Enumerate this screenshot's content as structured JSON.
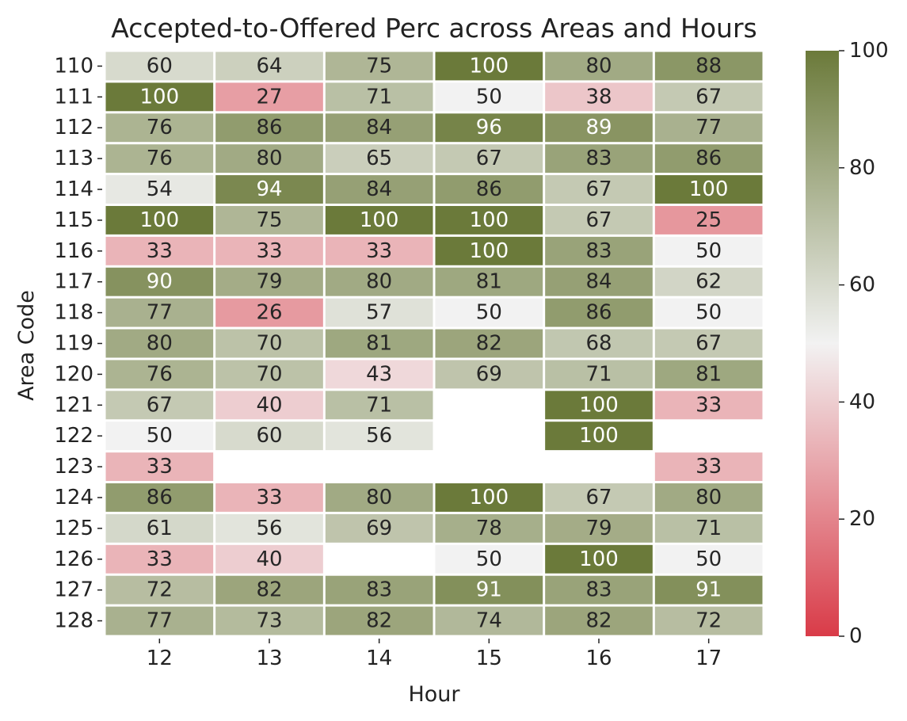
{
  "chart_data": {
    "type": "heatmap",
    "title": "Accepted-to-Offered Perc across Areas and Hours",
    "xlabel": "Hour",
    "ylabel": "Area Code",
    "x_categories": [
      "12",
      "13",
      "14",
      "15",
      "16",
      "17"
    ],
    "y_categories": [
      "110",
      "111",
      "112",
      "113",
      "114",
      "115",
      "116",
      "117",
      "118",
      "119",
      "120",
      "121",
      "122",
      "123",
      "124",
      "125",
      "126",
      "127",
      "128"
    ],
    "values": [
      [
        60,
        64,
        75,
        100,
        80,
        88
      ],
      [
        100,
        27,
        71,
        50,
        38,
        67
      ],
      [
        76,
        86,
        84,
        96,
        89,
        77
      ],
      [
        76,
        80,
        65,
        67,
        83,
        86
      ],
      [
        54,
        94,
        84,
        86,
        67,
        100
      ],
      [
        100,
        75,
        100,
        100,
        67,
        25
      ],
      [
        33,
        33,
        33,
        100,
        83,
        50
      ],
      [
        90,
        79,
        80,
        81,
        84,
        62
      ],
      [
        77,
        26,
        57,
        50,
        86,
        50
      ],
      [
        80,
        70,
        81,
        82,
        68,
        67
      ],
      [
        76,
        70,
        43,
        69,
        71,
        81
      ],
      [
        67,
        40,
        71,
        null,
        100,
        33
      ],
      [
        50,
        60,
        56,
        null,
        100,
        null
      ],
      [
        33,
        null,
        null,
        null,
        null,
        33
      ],
      [
        86,
        33,
        80,
        100,
        67,
        80
      ],
      [
        61,
        56,
        69,
        78,
        79,
        71
      ],
      [
        33,
        40,
        null,
        50,
        100,
        50
      ],
      [
        72,
        82,
        83,
        91,
        83,
        91
      ],
      [
        77,
        73,
        82,
        74,
        82,
        72
      ]
    ],
    "colorbar": {
      "range": [
        0,
        100
      ],
      "ticks": [
        "0",
        "20",
        "40",
        "60",
        "80",
        "100"
      ],
      "low_color": "#d93b48",
      "mid_color": "#f2f2f2",
      "high_color": "#6b7a3a"
    }
  }
}
